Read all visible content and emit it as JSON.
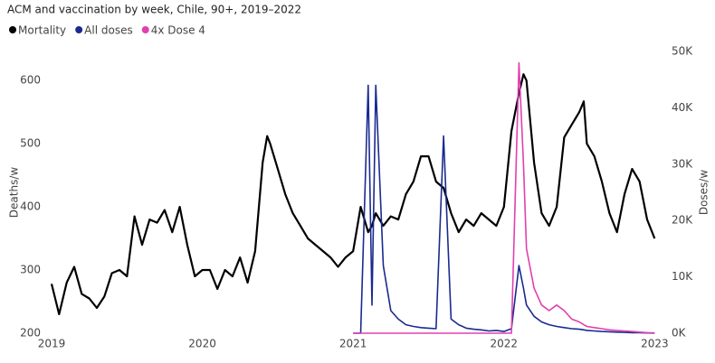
{
  "chart_data": {
    "type": "line",
    "title": "ACM and vaccination by week, Chile, 90+, 2019–2022",
    "y_label": "Deaths/w",
    "y2_label": "Doses/w",
    "legend": "top-left",
    "grid": false,
    "x": [
      2019.0,
      2019.05,
      2019.1,
      2019.15,
      2019.2,
      2019.25,
      2019.3,
      2019.35,
      2019.4,
      2019.45,
      2019.5,
      2019.55,
      2019.6,
      2019.65,
      2019.7,
      2019.75,
      2019.8,
      2019.85,
      2019.9,
      2019.95,
      2020.0,
      2020.05,
      2020.1,
      2020.15,
      2020.2,
      2020.25,
      2020.3,
      2020.35,
      2020.4,
      2020.43,
      2020.45,
      2020.5,
      2020.55,
      2020.6,
      2020.65,
      2020.7,
      2020.75,
      2020.8,
      2020.85,
      2020.9,
      2020.95,
      2021.0,
      2021.05,
      2021.1,
      2021.125,
      2021.15,
      2021.2,
      2021.25,
      2021.3,
      2021.35,
      2021.4,
      2021.45,
      2021.5,
      2021.55,
      2021.6,
      2021.65,
      2021.7,
      2021.75,
      2021.8,
      2021.85,
      2021.9,
      2021.95,
      2022.0,
      2022.05,
      2022.1,
      2022.13,
      2022.15,
      2022.2,
      2022.25,
      2022.3,
      2022.35,
      2022.4,
      2022.45,
      2022.5,
      2022.53,
      2022.55,
      2022.6,
      2022.65,
      2022.7,
      2022.75,
      2022.8,
      2022.85,
      2022.9,
      2022.95,
      2023.0
    ],
    "xlim": [
      2019,
      2023.07
    ],
    "xticks": [
      2019,
      2020,
      2021,
      2022,
      2023
    ],
    "ylim": [
      200,
      646
    ],
    "yticks": [
      200,
      300,
      400,
      500,
      600
    ],
    "y2lim": [
      0,
      50000
    ],
    "y2ticks": [
      {
        "value": 0,
        "label": "0K"
      },
      {
        "value": 10000,
        "label": "10K"
      },
      {
        "value": 20000,
        "label": "20K"
      },
      {
        "value": 30000,
        "label": "30K"
      },
      {
        "value": 40000,
        "label": "40K"
      },
      {
        "value": 50000,
        "label": "50K"
      }
    ],
    "series": [
      {
        "name": "Mortality",
        "color": "#000000",
        "axis": "y",
        "values": [
          278,
          230,
          280,
          305,
          262,
          255,
          240,
          258,
          295,
          300,
          290,
          385,
          340,
          380,
          375,
          395,
          360,
          400,
          340,
          290,
          300,
          300,
          270,
          300,
          290,
          320,
          280,
          330,
          470,
          512,
          500,
          460,
          420,
          390,
          370,
          350,
          340,
          330,
          320,
          305,
          320,
          330,
          400,
          360,
          370,
          390,
          370,
          385,
          380,
          420,
          440,
          480,
          480,
          440,
          430,
          390,
          360,
          380,
          370,
          390,
          380,
          370,
          400,
          520,
          580,
          610,
          600,
          470,
          390,
          370,
          400,
          510,
          530,
          550,
          567,
          500,
          480,
          440,
          390,
          360,
          420,
          460,
          440,
          380,
          350
        ]
      },
      {
        "name": "All doses",
        "color": "#1a2a8f",
        "axis": "y2",
        "values": [
          null,
          null,
          null,
          null,
          null,
          null,
          null,
          null,
          null,
          null,
          null,
          null,
          null,
          null,
          null,
          null,
          null,
          null,
          null,
          null,
          null,
          null,
          null,
          null,
          null,
          null,
          null,
          null,
          null,
          null,
          null,
          null,
          null,
          null,
          null,
          null,
          null,
          null,
          null,
          null,
          null,
          0,
          0,
          44000,
          5000,
          44000,
          12000,
          4000,
          2500,
          1500,
          1200,
          1000,
          900,
          800,
          35000,
          2500,
          1500,
          900,
          700,
          600,
          400,
          500,
          300,
          800,
          12000,
          8000,
          5000,
          3000,
          2000,
          1500,
          1200,
          1000,
          800,
          700,
          600,
          500,
          400,
          300,
          250,
          200,
          150,
          100,
          100,
          50,
          0
        ]
      },
      {
        "name": "4x Dose 4",
        "color": "#e040b0",
        "axis": "y2",
        "values": [
          null,
          null,
          null,
          null,
          null,
          null,
          null,
          null,
          null,
          null,
          null,
          null,
          null,
          null,
          null,
          null,
          null,
          null,
          null,
          null,
          null,
          null,
          null,
          null,
          null,
          null,
          null,
          null,
          null,
          null,
          null,
          null,
          null,
          null,
          null,
          null,
          null,
          null,
          null,
          null,
          null,
          0,
          0,
          0,
          0,
          0,
          0,
          0,
          0,
          0,
          0,
          0,
          0,
          0,
          0,
          0,
          0,
          0,
          0,
          0,
          0,
          0,
          0,
          0,
          48000,
          30000,
          15000,
          8000,
          5000,
          4000,
          5000,
          4000,
          2500,
          2000,
          1500,
          1200,
          1000,
          800,
          600,
          500,
          400,
          300,
          200,
          100,
          50
        ]
      }
    ]
  }
}
